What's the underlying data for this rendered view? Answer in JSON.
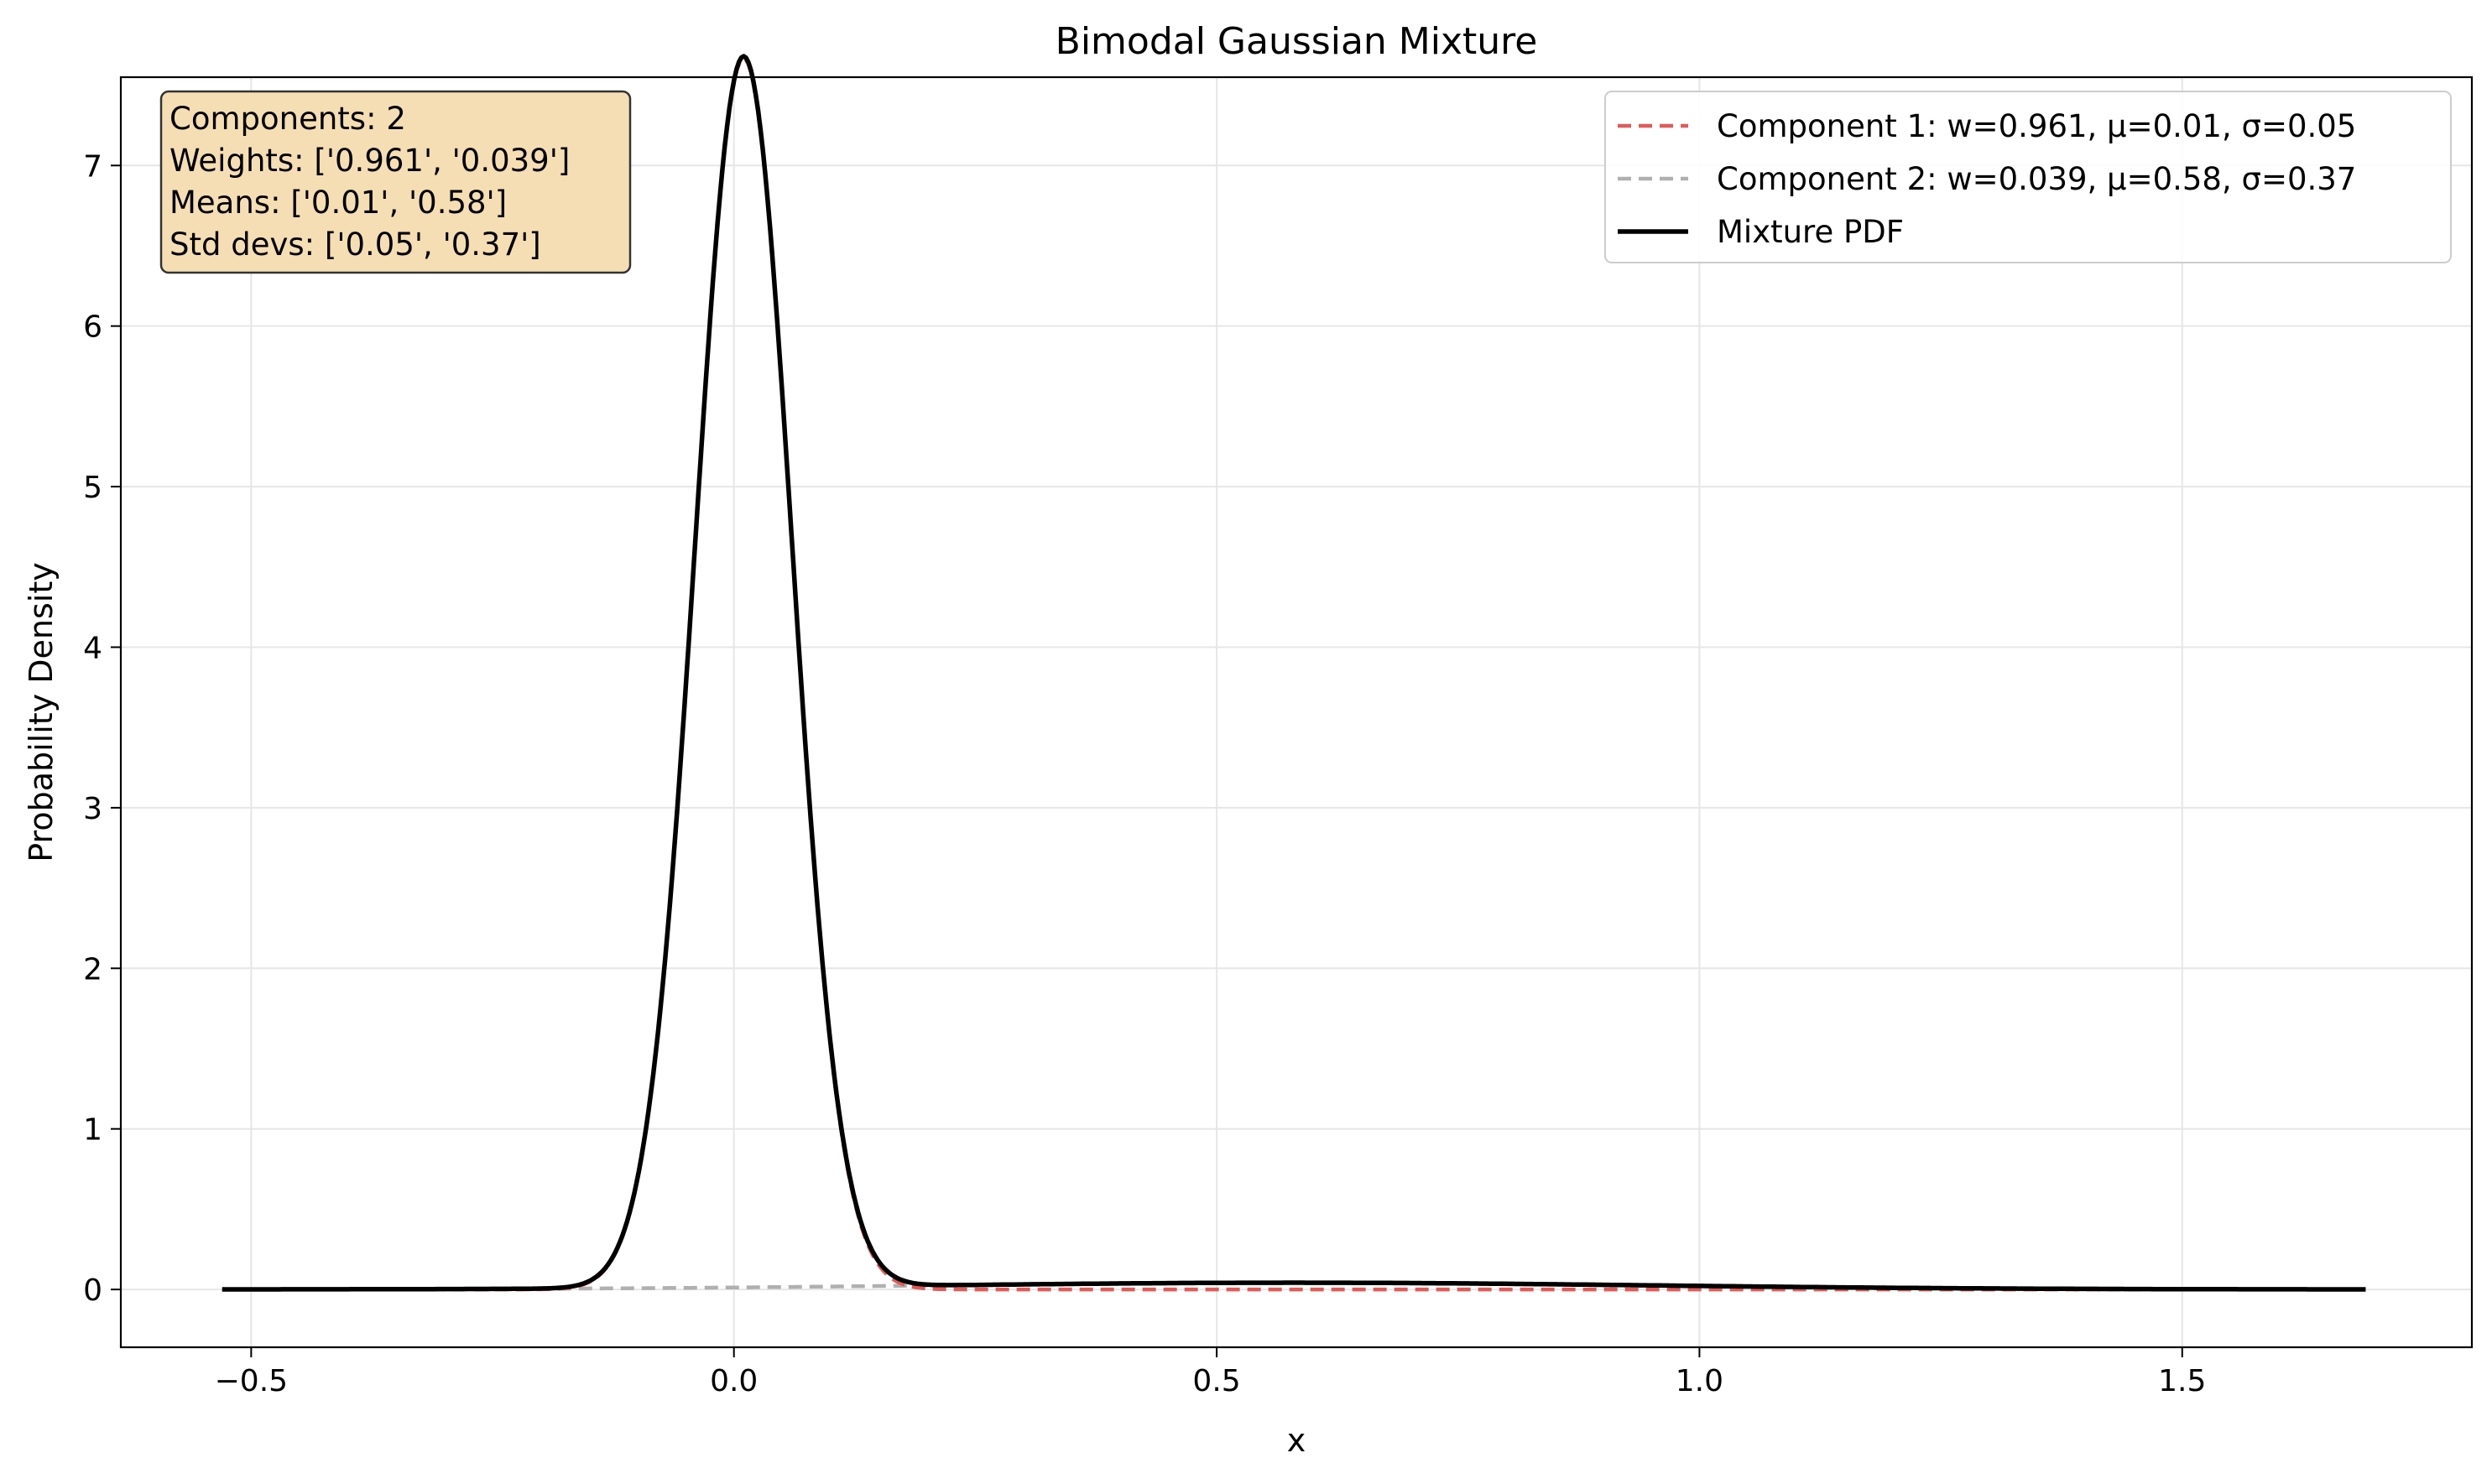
{
  "chart_data": {
    "type": "line",
    "title": "Bimodal Gaussian Mixture",
    "xlabel": "x",
    "ylabel": "Probability Density",
    "xlim": [
      -0.635,
      1.8
    ],
    "ylim": [
      -0.36,
      7.55
    ],
    "x_range": [
      -0.53,
      1.69
    ],
    "x_ticks": [
      -0.5,
      0.0,
      0.5,
      1.0,
      1.5
    ],
    "x_tick_labels": [
      "−0.5",
      "0.0",
      "0.5",
      "1.0",
      "1.5"
    ],
    "y_ticks": [
      0,
      1,
      2,
      3,
      4,
      5,
      6,
      7
    ],
    "y_tick_labels": [
      "0",
      "1",
      "2",
      "3",
      "4",
      "5",
      "6",
      "7"
    ],
    "grid": true,
    "legend_position": "top-right",
    "series": [
      {
        "name": "Component 1: w=0.961, μ=0.01, σ=0.05",
        "weight": 0.961,
        "mean": 0.01,
        "std": 0.05,
        "color": "#e05a5a",
        "style": "dashed"
      },
      {
        "name": "Component 2: w=0.039, μ=0.58, σ=0.37",
        "weight": 0.039,
        "mean": 0.58,
        "std": 0.37,
        "color": "#b0b0b0",
        "style": "dashed"
      },
      {
        "name": "Mixture PDF",
        "color": "#000000",
        "style": "solid"
      }
    ],
    "annotation_box": {
      "lines": [
        "Components: 2",
        "Weights: ['0.961', '0.039']",
        "Means: ['0.01', '0.58']",
        "Std devs: ['0.05', '0.37']"
      ],
      "background": "#f5deb3"
    }
  }
}
